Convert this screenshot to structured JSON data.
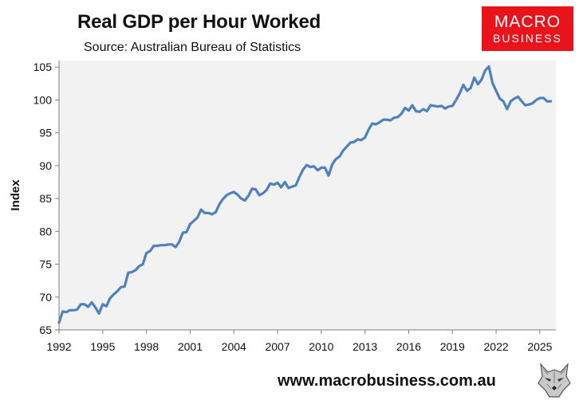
{
  "chart_data": {
    "type": "line",
    "title": "Real GDP per Hour Worked",
    "subtitle": "Source: Australian Bureau of Statistics",
    "xlabel": "",
    "ylabel": "Index",
    "xlim": [
      1992,
      2026.1
    ],
    "ylim": [
      65,
      106
    ],
    "yticks": [
      65,
      70,
      75,
      80,
      85,
      90,
      95,
      100,
      105
    ],
    "xticks": [
      1992,
      1995,
      1998,
      2001,
      2004,
      2007,
      2010,
      2013,
      2016,
      2019,
      2022,
      2025
    ],
    "grid": false,
    "legend": "none",
    "plot_background": "#f2f2f2",
    "series": [
      {
        "color": "#4f81bd",
        "points": [
          [
            1992.0,
            66.1
          ],
          [
            1992.25,
            67.8
          ],
          [
            1992.5,
            67.7
          ],
          [
            1992.75,
            68.0
          ],
          [
            1993.0,
            68.0
          ],
          [
            1993.25,
            68.1
          ],
          [
            1993.5,
            68.9
          ],
          [
            1993.75,
            68.9
          ],
          [
            1994.0,
            68.5
          ],
          [
            1994.25,
            69.2
          ],
          [
            1994.5,
            68.4
          ],
          [
            1994.75,
            67.5
          ],
          [
            1995.0,
            68.9
          ],
          [
            1995.25,
            68.6
          ],
          [
            1995.5,
            69.8
          ],
          [
            1995.75,
            70.4
          ],
          [
            1996.0,
            70.9
          ],
          [
            1996.25,
            71.5
          ],
          [
            1996.5,
            71.6
          ],
          [
            1996.75,
            73.7
          ],
          [
            1997.0,
            73.8
          ],
          [
            1997.25,
            74.1
          ],
          [
            1997.5,
            74.7
          ],
          [
            1997.75,
            75.0
          ],
          [
            1998.0,
            76.7
          ],
          [
            1998.25,
            77.0
          ],
          [
            1998.5,
            77.8
          ],
          [
            1998.75,
            77.8
          ],
          [
            1999.0,
            77.9
          ],
          [
            1999.25,
            77.9
          ],
          [
            1999.5,
            78.0
          ],
          [
            1999.75,
            78.0
          ],
          [
            2000.0,
            77.6
          ],
          [
            2000.25,
            78.4
          ],
          [
            2000.5,
            79.8
          ],
          [
            2000.75,
            79.9
          ],
          [
            2001.0,
            81.1
          ],
          [
            2001.25,
            81.6
          ],
          [
            2001.5,
            82.1
          ],
          [
            2001.75,
            83.3
          ],
          [
            2002.0,
            82.8
          ],
          [
            2002.25,
            82.8
          ],
          [
            2002.5,
            82.6
          ],
          [
            2002.75,
            82.9
          ],
          [
            2003.0,
            84.1
          ],
          [
            2003.25,
            84.9
          ],
          [
            2003.5,
            85.5
          ],
          [
            2003.75,
            85.8
          ],
          [
            2004.0,
            86.0
          ],
          [
            2004.25,
            85.6
          ],
          [
            2004.5,
            85.0
          ],
          [
            2004.75,
            84.7
          ],
          [
            2005.0,
            85.4
          ],
          [
            2005.25,
            86.5
          ],
          [
            2005.5,
            86.4
          ],
          [
            2005.75,
            85.5
          ],
          [
            2006.0,
            85.8
          ],
          [
            2006.25,
            86.3
          ],
          [
            2006.5,
            87.3
          ],
          [
            2006.75,
            87.1
          ],
          [
            2007.0,
            87.4
          ],
          [
            2007.25,
            86.7
          ],
          [
            2007.5,
            87.5
          ],
          [
            2007.75,
            86.6
          ],
          [
            2008.0,
            86.8
          ],
          [
            2008.25,
            87.0
          ],
          [
            2008.5,
            88.3
          ],
          [
            2008.75,
            89.4
          ],
          [
            2009.0,
            90.1
          ],
          [
            2009.25,
            89.8
          ],
          [
            2009.5,
            89.9
          ],
          [
            2009.75,
            89.3
          ],
          [
            2010.0,
            89.7
          ],
          [
            2010.25,
            89.7
          ],
          [
            2010.5,
            88.5
          ],
          [
            2010.75,
            90.2
          ],
          [
            2011.0,
            91.0
          ],
          [
            2011.25,
            91.4
          ],
          [
            2011.5,
            92.3
          ],
          [
            2011.75,
            92.9
          ],
          [
            2012.0,
            93.5
          ],
          [
            2012.25,
            93.6
          ],
          [
            2012.5,
            94.0
          ],
          [
            2012.75,
            93.9
          ],
          [
            2013.0,
            94.3
          ],
          [
            2013.25,
            95.5
          ],
          [
            2013.5,
            96.4
          ],
          [
            2013.75,
            96.3
          ],
          [
            2014.0,
            96.6
          ],
          [
            2014.25,
            97.0
          ],
          [
            2014.5,
            97.0
          ],
          [
            2014.75,
            96.9
          ],
          [
            2015.0,
            97.3
          ],
          [
            2015.25,
            97.4
          ],
          [
            2015.5,
            97.9
          ],
          [
            2015.75,
            98.8
          ],
          [
            2016.0,
            98.4
          ],
          [
            2016.25,
            99.2
          ],
          [
            2016.5,
            98.3
          ],
          [
            2016.75,
            98.2
          ],
          [
            2017.0,
            98.6
          ],
          [
            2017.25,
            98.3
          ],
          [
            2017.5,
            99.2
          ],
          [
            2017.75,
            99.1
          ],
          [
            2018.0,
            99.0
          ],
          [
            2018.25,
            99.1
          ],
          [
            2018.5,
            98.7
          ],
          [
            2018.75,
            99.0
          ],
          [
            2019.0,
            99.1
          ],
          [
            2019.25,
            100.0
          ],
          [
            2019.5,
            101.0
          ],
          [
            2019.75,
            102.3
          ],
          [
            2020.0,
            101.4
          ],
          [
            2020.25,
            101.8
          ],
          [
            2020.5,
            103.4
          ],
          [
            2020.75,
            102.4
          ],
          [
            2021.0,
            103.1
          ],
          [
            2021.25,
            104.5
          ],
          [
            2021.5,
            105.1
          ],
          [
            2021.75,
            102.6
          ],
          [
            2022.0,
            101.4
          ],
          [
            2022.25,
            100.2
          ],
          [
            2022.5,
            99.8
          ],
          [
            2022.75,
            98.6
          ],
          [
            2023.0,
            99.8
          ],
          [
            2023.25,
            100.2
          ],
          [
            2023.5,
            100.5
          ],
          [
            2023.75,
            99.8
          ],
          [
            2024.0,
            99.2
          ],
          [
            2024.25,
            99.3
          ],
          [
            2024.5,
            99.5
          ],
          [
            2024.75,
            100.0
          ],
          [
            2025.0,
            100.3
          ],
          [
            2025.25,
            100.3
          ],
          [
            2025.5,
            99.8
          ],
          [
            2025.75,
            99.8
          ]
        ]
      }
    ]
  },
  "branding": {
    "logo_line1": "MACRO",
    "logo_line2": "BUSINESS",
    "logo_color": "#e8131b",
    "website": "www.macrobusiness.com.au",
    "mascot_icon": "wolf-icon"
  }
}
